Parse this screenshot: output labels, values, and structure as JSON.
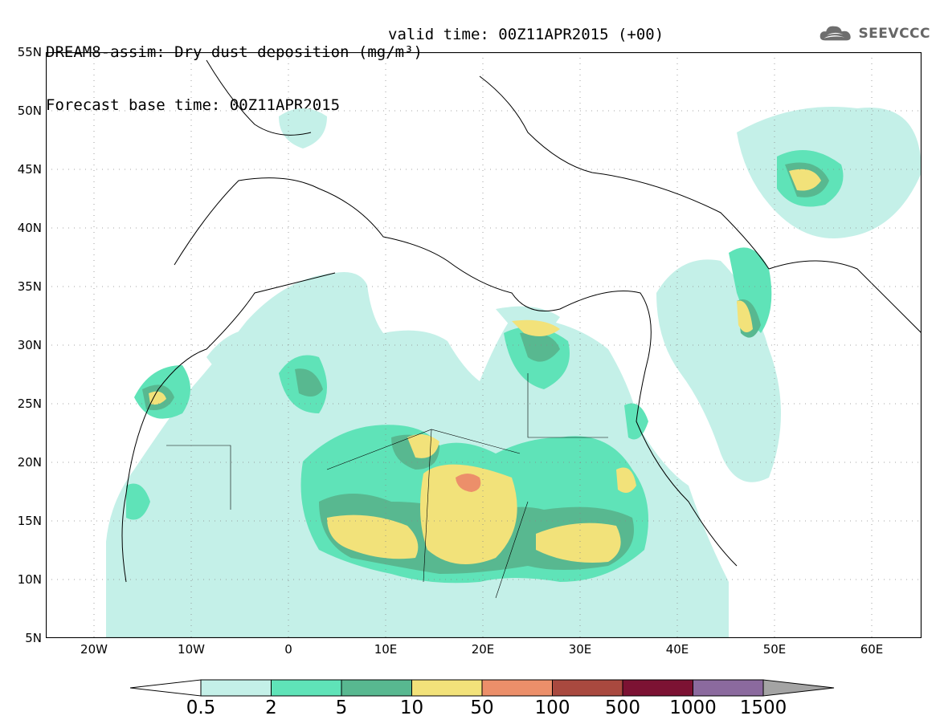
{
  "header": {
    "title": "DREAM8-assim: Dry dust deposition (mg/m³)",
    "base_time": "Forecast base time: 00Z11APR2015",
    "valid_time": "valid time: 00Z11APR2015 (+00)",
    "logo_text": "SEEVCCC",
    "logo_icon": "cloud-logo-icon"
  },
  "map": {
    "region": "North Africa, Europe, Middle East",
    "projection": "lat-lon",
    "lat_range": [
      5,
      55
    ],
    "lon_range": [
      -25,
      65
    ],
    "lat_ticks": [
      "55N",
      "50N",
      "45N",
      "40N",
      "35N",
      "30N",
      "25N",
      "20N",
      "15N",
      "10N",
      "5N"
    ],
    "lon_ticks": [
      "20W",
      "10W",
      "0",
      "10E",
      "20E",
      "30E",
      "40E",
      "50E",
      "60E"
    ],
    "grid": true
  },
  "legend": {
    "levels": [
      "0.5",
      "2",
      "5",
      "10",
      "50",
      "100",
      "500",
      "1000",
      "1500"
    ],
    "colors": [
      "#ffffff",
      "#c4f0e8",
      "#5fe3b8",
      "#58b890",
      "#f2e27a",
      "#ec8f6a",
      "#a9493f",
      "#7c1233",
      "#8b6a9e",
      "#a4a4a4"
    ]
  },
  "chart_data": {
    "type": "heatmap",
    "title": "DREAM8-assim: Dry dust deposition (mg/m³)",
    "units": "mg/m³",
    "xlabel": "",
    "ylabel": "",
    "xlim": [
      -25,
      65
    ],
    "ylim": [
      5,
      55
    ],
    "levels": [
      0.5,
      2,
      5,
      10,
      50,
      100,
      500,
      1000,
      1500
    ],
    "hotspots": [
      {
        "lon": 18.5,
        "lat": 18.5,
        "level": "50-100"
      },
      {
        "lon": 12,
        "lat": 13.5,
        "level": "10-50"
      },
      {
        "lon": 20,
        "lat": 15,
        "level": "10-50"
      },
      {
        "lon": 31,
        "lat": 13,
        "level": "10-50"
      },
      {
        "lon": 15,
        "lat": 21.5,
        "level": "10-50"
      },
      {
        "lon": 26.5,
        "lat": 30.5,
        "level": "10-50"
      },
      {
        "lon": 48,
        "lat": 30.5,
        "level": "10-50"
      },
      {
        "lon": 52,
        "lat": 44,
        "level": "10-50"
      },
      {
        "lon": -13.5,
        "lat": 25,
        "level": "10-50"
      }
    ]
  }
}
